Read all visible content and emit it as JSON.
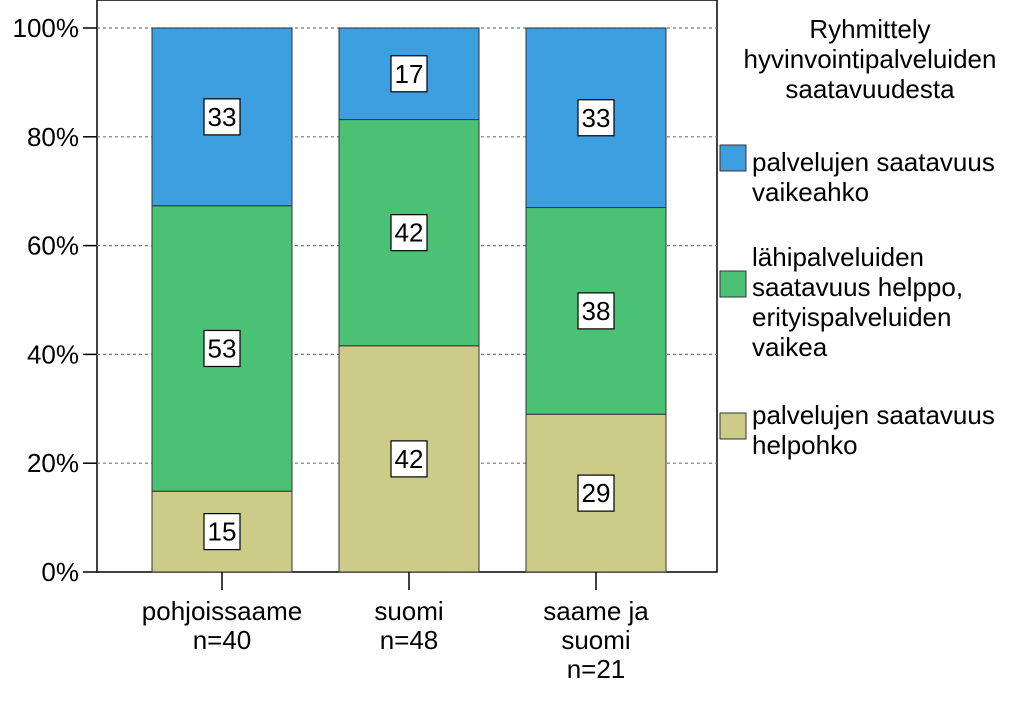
{
  "chart_data": {
    "type": "bar",
    "stacked": true,
    "percent": true,
    "categories": [
      [
        "pohjoissaame",
        "n=40"
      ],
      [
        "suomi",
        "n=48"
      ],
      [
        "saame ja",
        "suomi",
        "n=21"
      ]
    ],
    "series": [
      {
        "name": "palvelujen saatavuus helpohko",
        "legend_lines": [
          "palvelujen saatavuus",
          "helpohko"
        ],
        "color": "#cccc88",
        "values": [
          15,
          42,
          29
        ]
      },
      {
        "name": "lähipalveluiden saatavuus helppo, erityispalveluiden vaikea",
        "legend_lines": [
          "lähipalveluiden",
          "saatavuus helppo,",
          "erityispalveluiden",
          "vaikea"
        ],
        "color": "#4bc176",
        "values": [
          53,
          42,
          38
        ]
      },
      {
        "name": "palvelujen saatavuus vaikeahko",
        "legend_lines": [
          "palvelujen saatavuus",
          "vaikeahko"
        ],
        "color": "#3d9ee0",
        "values": [
          33,
          17,
          33
        ]
      }
    ],
    "legend_title": [
      "Ryhmittely",
      "hyvinvointipalveluiden",
      "saatavuudesta"
    ],
    "ylim": [
      0,
      100
    ],
    "yticks": [
      "0%",
      "20%",
      "40%",
      "60%",
      "80%",
      "100%"
    ],
    "grid": true,
    "legend_position": "right"
  }
}
